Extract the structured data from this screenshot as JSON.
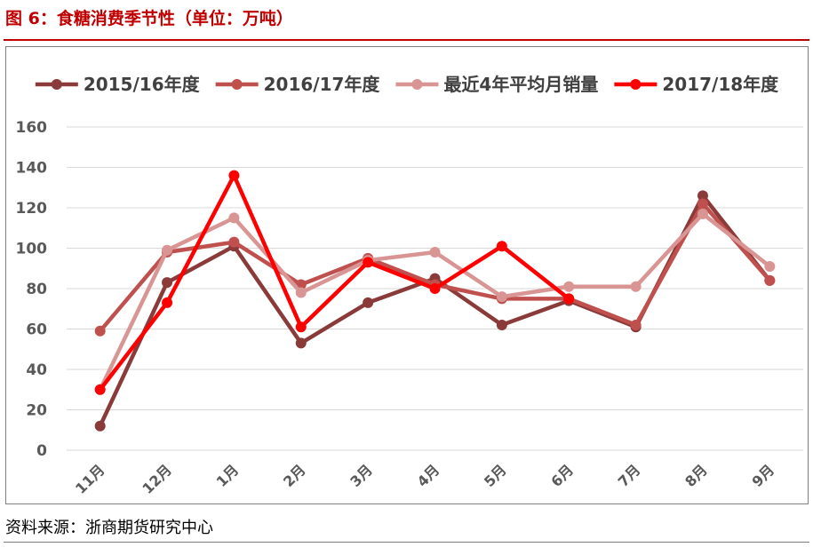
{
  "figure": {
    "title": "图 6：食糖消费季节性（单位：万吨）",
    "source": "资料来源：浙商期货研究中心"
  },
  "chart_data": {
    "type": "line",
    "title": "食糖消费季节性（单位：万吨）",
    "xlabel": "",
    "ylabel": "",
    "categories": [
      "11月",
      "12月",
      "1月",
      "2月",
      "3月",
      "4月",
      "5月",
      "6月",
      "7月",
      "8月",
      "9月"
    ],
    "ylim": [
      0,
      160
    ],
    "yticks": [
      0,
      20,
      40,
      60,
      80,
      100,
      120,
      140,
      160
    ],
    "grid": true,
    "legend_position": "top",
    "series": [
      {
        "name": "2015/16年度",
        "color": "#8B3A3A",
        "values": [
          12,
          83,
          101,
          53,
          73,
          85,
          62,
          74,
          61,
          126,
          84
        ]
      },
      {
        "name": "2016/17年度",
        "color": "#C0504D",
        "values": [
          59,
          98,
          103,
          82,
          95,
          82,
          75,
          75,
          62,
          122,
          84
        ]
      },
      {
        "name": "最近4年平均月销量",
        "color": "#D99594",
        "values": [
          30,
          99,
          115,
          78,
          94,
          98,
          76,
          81,
          81,
          117,
          91
        ]
      },
      {
        "name": "2017/18年度",
        "color": "#FF0000",
        "values": [
          30,
          73,
          136,
          61,
          93,
          80,
          101,
          75,
          null,
          null,
          null
        ]
      }
    ]
  }
}
